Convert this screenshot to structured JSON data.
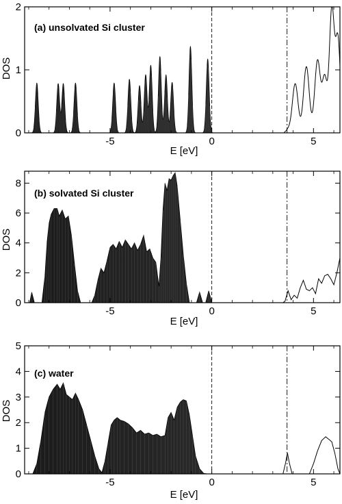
{
  "chart_data": [
    {
      "type": "area",
      "panel_label": "(a) unsolvated Si cluster",
      "xlabel": "E [eV]",
      "ylabel": "DOS",
      "xlim": [
        -9.2,
        6.3
      ],
      "ylim": [
        0,
        2
      ],
      "x_ticks": [
        -5,
        0,
        5
      ],
      "y_ticks": [
        0,
        1,
        2
      ],
      "vlines": [
        {
          "x": 0,
          "style": "dashed"
        },
        {
          "x": 3.7,
          "style": "dash-dot"
        }
      ],
      "series": [
        {
          "fill": "occupied",
          "peaks": [
            {
              "center": -8.6,
              "height": 0.79,
              "width": 0.07
            },
            {
              "center": -7.55,
              "height": 0.78,
              "width": 0.07
            },
            {
              "center": -7.3,
              "height": 0.78,
              "width": 0.07
            },
            {
              "center": -6.7,
              "height": 0.79,
              "width": 0.07
            },
            {
              "center": -4.8,
              "height": 0.79,
              "width": 0.07
            },
            {
              "center": -4.05,
              "height": 0.85,
              "width": 0.07
            },
            {
              "center": -3.55,
              "height": 0.75,
              "width": 0.07
            },
            {
              "center": -3.25,
              "height": 0.92,
              "width": 0.07
            },
            {
              "center": -3.0,
              "height": 1.07,
              "width": 0.07
            },
            {
              "center": -2.55,
              "height": 1.21,
              "width": 0.07
            },
            {
              "center": -2.25,
              "height": 0.92,
              "width": 0.07
            },
            {
              "center": -1.95,
              "height": 0.8,
              "width": 0.07
            },
            {
              "center": -1.05,
              "height": 1.37,
              "width": 0.07
            },
            {
              "center": -0.2,
              "height": 1.17,
              "width": 0.07
            }
          ]
        },
        {
          "fill": "unoccupied",
          "peaks": [
            {
              "center": 3.75,
              "height": 0.05,
              "width": 0.1
            },
            {
              "center": 4.1,
              "height": 0.78,
              "width": 0.14
            },
            {
              "center": 4.65,
              "height": 1.05,
              "width": 0.14
            },
            {
              "center": 5.2,
              "height": 1.15,
              "width": 0.14
            },
            {
              "center": 5.55,
              "height": 0.85,
              "width": 0.12
            },
            {
              "center": 5.9,
              "height": 1.95,
              "width": 0.12
            },
            {
              "center": 6.2,
              "height": 1.48,
              "width": 0.12
            }
          ]
        }
      ]
    },
    {
      "type": "area",
      "panel_label": "(b) solvated Si cluster",
      "xlabel": "E [eV]",
      "ylabel": "DOS",
      "xlim": [
        -9.2,
        6.3
      ],
      "ylim": [
        0,
        8.8
      ],
      "x_ticks": [
        -5,
        0,
        5
      ],
      "y_ticks": [
        0,
        2,
        4,
        6,
        8
      ],
      "vlines": [
        {
          "x": 0,
          "style": "dashed"
        },
        {
          "x": 3.7,
          "style": "dash-dot"
        }
      ],
      "series": [
        {
          "fill": "occupied",
          "points": [
            [
              -9.2,
              0
            ],
            [
              -8.95,
              0
            ],
            [
              -8.85,
              0.7
            ],
            [
              -8.72,
              0
            ],
            [
              -8.35,
              0
            ],
            [
              -8.2,
              1.8
            ],
            [
              -8.1,
              4.0
            ],
            [
              -8.0,
              5.3
            ],
            [
              -7.9,
              5.9
            ],
            [
              -7.75,
              6.3
            ],
            [
              -7.6,
              6.3
            ],
            [
              -7.5,
              5.8
            ],
            [
              -7.35,
              6.2
            ],
            [
              -7.2,
              5.6
            ],
            [
              -7.05,
              5.8
            ],
            [
              -6.9,
              4.5
            ],
            [
              -6.75,
              2.6
            ],
            [
              -6.6,
              0.8
            ],
            [
              -6.45,
              0
            ],
            [
              -5.9,
              0
            ],
            [
              -5.75,
              0.5
            ],
            [
              -5.6,
              1.5
            ],
            [
              -5.45,
              2.3
            ],
            [
              -5.3,
              2.0
            ],
            [
              -5.15,
              2.8
            ],
            [
              -5.0,
              3.7
            ],
            [
              -4.85,
              3.9
            ],
            [
              -4.7,
              3.6
            ],
            [
              -4.55,
              4.1
            ],
            [
              -4.4,
              3.7
            ],
            [
              -4.25,
              4.2
            ],
            [
              -4.1,
              3.9
            ],
            [
              -3.95,
              3.6
            ],
            [
              -3.8,
              4.0
            ],
            [
              -3.65,
              3.5
            ],
            [
              -3.5,
              3.9
            ],
            [
              -3.35,
              4.5
            ],
            [
              -3.2,
              3.4
            ],
            [
              -3.05,
              3.6
            ],
            [
              -2.9,
              3.0
            ],
            [
              -2.75,
              2.7
            ],
            [
              -2.6,
              1.1
            ],
            [
              -2.5,
              3.0
            ],
            [
              -2.4,
              6.2
            ],
            [
              -2.3,
              8.0
            ],
            [
              -2.2,
              7.5
            ],
            [
              -2.1,
              8.3
            ],
            [
              -2.0,
              8.2
            ],
            [
              -1.9,
              8.5
            ],
            [
              -1.8,
              8.7
            ],
            [
              -1.7,
              7.8
            ],
            [
              -1.55,
              5.5
            ],
            [
              -1.4,
              3.2
            ],
            [
              -1.25,
              1.3
            ],
            [
              -1.1,
              0
            ],
            [
              -0.75,
              0
            ],
            [
              -0.6,
              0.7
            ],
            [
              -0.45,
              0
            ],
            [
              -0.3,
              0
            ],
            [
              -0.15,
              0.8
            ],
            [
              0.0,
              0
            ]
          ]
        },
        {
          "fill": "unoccupied",
          "points": [
            [
              3.5,
              0
            ],
            [
              3.6,
              0.1
            ],
            [
              3.75,
              0.8
            ],
            [
              3.9,
              0.2
            ],
            [
              4.05,
              0.5
            ],
            [
              4.2,
              0.3
            ],
            [
              4.35,
              1.0
            ],
            [
              4.5,
              1.5
            ],
            [
              4.65,
              0.9
            ],
            [
              4.8,
              0.8
            ],
            [
              4.95,
              1.0
            ],
            [
              5.1,
              0.6
            ],
            [
              5.25,
              1.6
            ],
            [
              5.4,
              1.3
            ],
            [
              5.55,
              1.8
            ],
            [
              5.7,
              1.9
            ],
            [
              5.85,
              1.6
            ],
            [
              6.0,
              1.2
            ],
            [
              6.15,
              2.0
            ],
            [
              6.3,
              3.0
            ]
          ]
        }
      ]
    },
    {
      "type": "area",
      "panel_label": "(c) water",
      "xlabel": "E [eV]",
      "ylabel": "DOS",
      "xlim": [
        -9.2,
        6.3
      ],
      "ylim": [
        0,
        5
      ],
      "x_ticks": [
        -5,
        0,
        5
      ],
      "y_ticks": [
        0,
        1,
        2,
        3,
        4,
        5
      ],
      "vlines": [
        {
          "x": 0,
          "style": "dashed"
        },
        {
          "x": 3.7,
          "style": "dash-dot"
        }
      ],
      "series": [
        {
          "fill": "occupied",
          "points": [
            [
              -9.2,
              0
            ],
            [
              -8.8,
              0
            ],
            [
              -8.6,
              0.4
            ],
            [
              -8.4,
              1.3
            ],
            [
              -8.2,
              2.4
            ],
            [
              -8.0,
              3.0
            ],
            [
              -7.8,
              3.3
            ],
            [
              -7.6,
              3.5
            ],
            [
              -7.45,
              3.3
            ],
            [
              -7.3,
              3.55
            ],
            [
              -7.15,
              3.1
            ],
            [
              -7.0,
              3.0
            ],
            [
              -6.85,
              2.9
            ],
            [
              -6.7,
              3.15
            ],
            [
              -6.55,
              2.9
            ],
            [
              -6.35,
              2.5
            ],
            [
              -6.15,
              1.9
            ],
            [
              -5.95,
              1.3
            ],
            [
              -5.75,
              0.7
            ],
            [
              -5.55,
              0.2
            ],
            [
              -5.4,
              0.05
            ],
            [
              -5.25,
              0.5
            ],
            [
              -5.1,
              1.2
            ],
            [
              -4.95,
              1.9
            ],
            [
              -4.8,
              2.1
            ],
            [
              -4.65,
              2.2
            ],
            [
              -4.5,
              2.1
            ],
            [
              -4.3,
              2.05
            ],
            [
              -4.1,
              1.95
            ],
            [
              -3.9,
              1.8
            ],
            [
              -3.7,
              1.6
            ],
            [
              -3.5,
              1.7
            ],
            [
              -3.3,
              1.55
            ],
            [
              -3.1,
              1.6
            ],
            [
              -2.9,
              1.5
            ],
            [
              -2.7,
              1.55
            ],
            [
              -2.5,
              1.45
            ],
            [
              -2.3,
              1.5
            ],
            [
              -2.15,
              2.2
            ],
            [
              -2.0,
              2.4
            ],
            [
              -1.85,
              2.1
            ],
            [
              -1.7,
              2.6
            ],
            [
              -1.55,
              2.8
            ],
            [
              -1.4,
              2.9
            ],
            [
              -1.25,
              2.85
            ],
            [
              -1.1,
              2.3
            ],
            [
              -0.95,
              1.5
            ],
            [
              -0.8,
              0.7
            ],
            [
              -0.6,
              0.2
            ],
            [
              -0.4,
              0.02
            ],
            [
              -0.2,
              0
            ],
            [
              0.0,
              0
            ]
          ]
        },
        {
          "fill": "unoccupied",
          "points": [
            [
              3.5,
              0
            ],
            [
              3.62,
              0.4
            ],
            [
              3.72,
              0.82
            ],
            [
              3.82,
              0.4
            ],
            [
              3.95,
              0
            ],
            [
              4.8,
              0
            ],
            [
              5.0,
              0.4
            ],
            [
              5.2,
              0.9
            ],
            [
              5.4,
              1.3
            ],
            [
              5.6,
              1.45
            ],
            [
              5.75,
              1.35
            ],
            [
              5.9,
              1.25
            ],
            [
              6.05,
              0.8
            ],
            [
              6.2,
              0.2
            ],
            [
              6.3,
              0
            ]
          ]
        }
      ]
    }
  ]
}
